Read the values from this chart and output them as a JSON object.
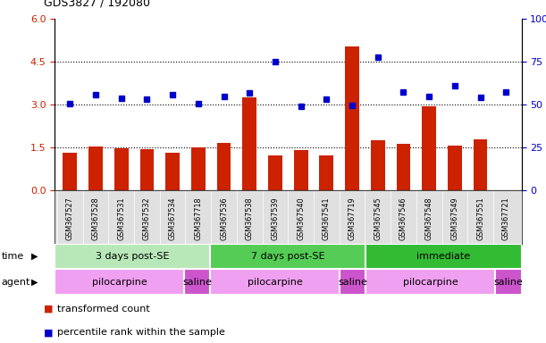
{
  "title": "GDS3827 / 192080",
  "samples": [
    "GSM367527",
    "GSM367528",
    "GSM367531",
    "GSM367532",
    "GSM367534",
    "GSM367718",
    "GSM367536",
    "GSM367538",
    "GSM367539",
    "GSM367540",
    "GSM367541",
    "GSM367719",
    "GSM367545",
    "GSM367546",
    "GSM367548",
    "GSM367549",
    "GSM367551",
    "GSM367721"
  ],
  "bar_values": [
    1.32,
    1.52,
    1.47,
    1.45,
    1.32,
    1.5,
    1.65,
    3.25,
    1.22,
    1.4,
    1.22,
    5.05,
    1.75,
    1.62,
    2.95,
    1.57,
    1.78,
    0.0
  ],
  "dot_values": [
    3.05,
    3.35,
    3.22,
    3.2,
    3.35,
    3.02,
    3.3,
    3.42,
    4.5,
    2.95,
    3.2,
    2.98,
    4.65,
    3.45,
    3.28,
    3.65,
    3.25,
    3.45
  ],
  "bar_color": "#cc2200",
  "dot_color": "#0000cc",
  "ylim_left": [
    0,
    6
  ],
  "ylim_right": [
    0,
    100
  ],
  "yticks_left": [
    0,
    1.5,
    3.0,
    4.5,
    6.0
  ],
  "yticks_right": [
    0,
    25,
    50,
    75,
    100
  ],
  "hlines": [
    1.5,
    3.0,
    4.5
  ],
  "time_groups": [
    {
      "label": "3 days post-SE",
      "start": 0,
      "end": 6,
      "color": "#b8e8b8"
    },
    {
      "label": "7 days post-SE",
      "start": 6,
      "end": 12,
      "color": "#55cc55"
    },
    {
      "label": "immediate",
      "start": 12,
      "end": 18,
      "color": "#33bb33"
    }
  ],
  "agent_groups": [
    {
      "label": "pilocarpine",
      "start": 0,
      "end": 5,
      "color": "#f0a0f0"
    },
    {
      "label": "saline",
      "start": 5,
      "end": 6,
      "color": "#cc55cc"
    },
    {
      "label": "pilocarpine",
      "start": 6,
      "end": 11,
      "color": "#f0a0f0"
    },
    {
      "label": "saline",
      "start": 11,
      "end": 12,
      "color": "#cc55cc"
    },
    {
      "label": "pilocarpine",
      "start": 12,
      "end": 17,
      "color": "#f0a0f0"
    },
    {
      "label": "saline",
      "start": 17,
      "end": 18,
      "color": "#cc55cc"
    }
  ],
  "legend_items": [
    {
      "label": "transformed count",
      "color": "#cc2200"
    },
    {
      "label": "percentile rank within the sample",
      "color": "#0000cc"
    }
  ],
  "bar_width": 0.55,
  "xlabel_fontsize": 6,
  "ylabel_fontsize": 8,
  "title_fontsize": 9,
  "fig_width": 6.11,
  "fig_height": 3.84,
  "dpi": 100
}
